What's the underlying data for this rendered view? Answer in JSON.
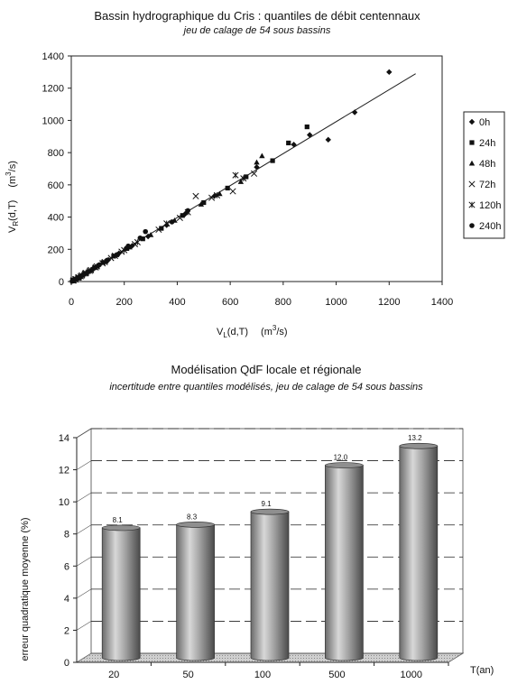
{
  "chart_data": [
    {
      "type": "scatter",
      "title": "Bassin hydrographique du Cris : quantiles de débit centennaux",
      "subtitle": "jeu de calage de 54 sous bassins",
      "xlabel_main": "V",
      "xlabel_sub": "L",
      "xlabel_args": "(d,T)",
      "xlabel_unit_pre": "(m",
      "xlabel_unit_sup": "3",
      "xlabel_unit_post": "/s)",
      "ylabel_main": "V",
      "ylabel_sub": "R",
      "ylabel_args": "(d,T)",
      "ylabel_unit_pre": "(m",
      "ylabel_unit_sup": "3",
      "ylabel_unit_post": "/s)",
      "xlim": [
        0,
        1400
      ],
      "ylim": [
        0,
        1400
      ],
      "xticks": [
        "0",
        "200",
        "400",
        "600",
        "800",
        "1000",
        "1200",
        "1400"
      ],
      "yticks": [
        "0",
        "200",
        "400",
        "600",
        "800",
        "1000",
        "1200",
        "1400"
      ],
      "legend_position": "right",
      "trendline": [
        [
          0,
          0
        ],
        [
          1300,
          1290
        ]
      ],
      "series": [
        {
          "name": "0h",
          "marker": "diamond",
          "points": [
            [
              3,
              3
            ],
            [
              8,
              6
            ],
            [
              12,
              10
            ],
            [
              18,
              16
            ],
            [
              25,
              22
            ],
            [
              33,
              30
            ],
            [
              45,
              42
            ],
            [
              60,
              58
            ],
            [
              80,
              75
            ],
            [
              100,
              98
            ],
            [
              140,
              135
            ],
            [
              180,
              175
            ],
            [
              230,
              222
            ],
            [
              290,
              280
            ],
            [
              360,
              350
            ],
            [
              430,
              420
            ],
            [
              540,
              530
            ],
            [
              700,
              710
            ],
            [
              840,
              850
            ],
            [
              900,
              910
            ],
            [
              970,
              880
            ],
            [
              1070,
              1050
            ],
            [
              1200,
              1300
            ]
          ]
        },
        {
          "name": "24h",
          "marker": "square",
          "points": [
            [
              5,
              4
            ],
            [
              10,
              9
            ],
            [
              16,
              15
            ],
            [
              24,
              22
            ],
            [
              34,
              31
            ],
            [
              48,
              46
            ],
            [
              65,
              62
            ],
            [
              88,
              86
            ],
            [
              120,
              118
            ],
            [
              160,
              158
            ],
            [
              210,
              205
            ],
            [
              270,
              265
            ],
            [
              340,
              330
            ],
            [
              420,
              410
            ],
            [
              500,
              490
            ],
            [
              590,
              580
            ],
            [
              660,
              650
            ],
            [
              760,
              750
            ],
            [
              820,
              860
            ],
            [
              890,
              960
            ]
          ]
        },
        {
          "name": "48h",
          "marker": "triangle",
          "points": [
            [
              6,
              5
            ],
            [
              14,
              12
            ],
            [
              22,
              20
            ],
            [
              31,
              29
            ],
            [
              42,
              40
            ],
            [
              57,
              55
            ],
            [
              75,
              72
            ],
            [
              98,
              96
            ],
            [
              130,
              125
            ],
            [
              170,
              166
            ],
            [
              220,
              214
            ],
            [
              300,
              290
            ],
            [
              390,
              380
            ],
            [
              490,
              480
            ],
            [
              560,
              545
            ],
            [
              640,
              620
            ],
            [
              700,
              740
            ],
            [
              720,
              780
            ]
          ]
        },
        {
          "name": "72h",
          "marker": "x",
          "points": [
            [
              7,
              6
            ],
            [
              15,
              13
            ],
            [
              26,
              24
            ],
            [
              36,
              33
            ],
            [
              52,
              50
            ],
            [
              70,
              67
            ],
            [
              92,
              88
            ],
            [
              118,
              113
            ],
            [
              150,
              146
            ],
            [
              190,
              185
            ],
            [
              240,
              232
            ],
            [
              330,
              322
            ],
            [
              410,
              395
            ],
            [
              470,
              530
            ],
            [
              530,
              520
            ],
            [
              610,
              560
            ],
            [
              690,
              670
            ]
          ]
        },
        {
          "name": "120h",
          "marker": "star",
          "points": [
            [
              9,
              7
            ],
            [
              17,
              15
            ],
            [
              28,
              26
            ],
            [
              40,
              38
            ],
            [
              55,
              53
            ],
            [
              74,
              71
            ],
            [
              96,
              94
            ],
            [
              126,
              121
            ],
            [
              165,
              160
            ],
            [
              200,
              195
            ],
            [
              250,
              244
            ],
            [
              360,
              360
            ],
            [
              440,
              430
            ],
            [
              550,
              535
            ],
            [
              620,
              660
            ],
            [
              650,
              640
            ]
          ]
        },
        {
          "name": "240h",
          "marker": "circle",
          "points": [
            [
              4,
              3
            ],
            [
              11,
              9
            ],
            [
              20,
              18
            ],
            [
              30,
              27
            ],
            [
              44,
              41
            ],
            [
              60,
              56
            ],
            [
              82,
              78
            ],
            [
              106,
              104
            ],
            [
              135,
              132
            ],
            [
              175,
              168
            ],
            [
              215,
              220
            ],
            [
              260,
              270
            ],
            [
              280,
              310
            ],
            [
              380,
              370
            ],
            [
              440,
              440
            ]
          ]
        }
      ]
    },
    {
      "type": "bar",
      "title": "Modélisation QdF locale et régionale",
      "subtitle": "incertitude entre quantiles modélisés, jeu de calage de 54 sous bassins",
      "ylabel": "erreur quadratique moyenne (%)",
      "xlabel": "T(an)",
      "categories": [
        "20",
        "50",
        "100",
        "500",
        "1000"
      ],
      "values": [
        8.1,
        8.3,
        9.1,
        12.0,
        13.2
      ],
      "data_labels": [
        "8.1",
        "8.3",
        "9.1",
        "12.0",
        "13.2"
      ],
      "ylim": [
        0,
        14
      ],
      "yticks": [
        "0",
        "2",
        "4",
        "6",
        "8",
        "10",
        "12",
        "14"
      ],
      "grid": true,
      "style": "3d-cylinder"
    }
  ]
}
